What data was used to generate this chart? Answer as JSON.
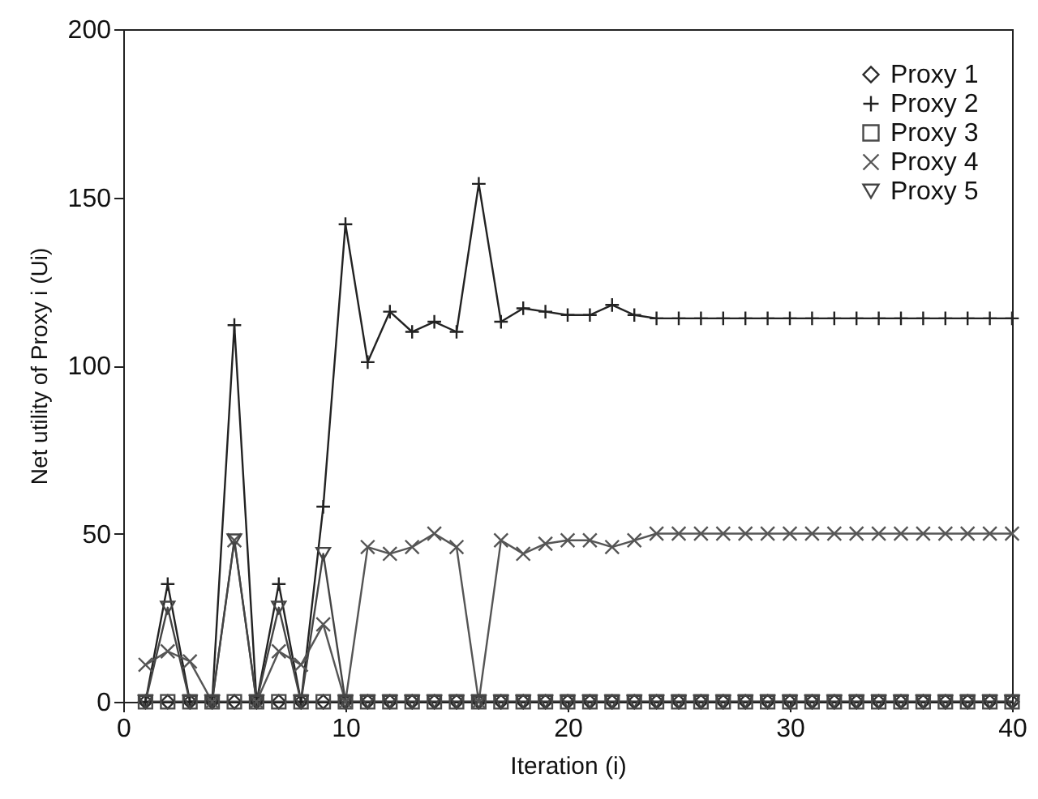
{
  "chart_data": {
    "type": "line",
    "xlabel": "Iteration (i)",
    "ylabel": "Net utility of Proxy i (Ui)",
    "x": [
      1,
      2,
      3,
      4,
      5,
      6,
      7,
      8,
      9,
      10,
      11,
      12,
      13,
      14,
      15,
      16,
      17,
      18,
      19,
      20,
      21,
      22,
      23,
      24,
      25,
      26,
      27,
      28,
      29,
      30,
      31,
      32,
      33,
      34,
      35,
      36,
      37,
      38,
      39,
      40
    ],
    "series": [
      {
        "name": "Proxy 1",
        "color": "#2a2a2a",
        "marker": "diamond",
        "values": [
          0,
          0,
          0,
          0,
          0,
          0,
          0,
          0,
          0,
          0,
          0,
          0,
          0,
          0,
          0,
          0,
          0,
          0,
          0,
          0,
          0,
          0,
          0,
          0,
          0,
          0,
          0,
          0,
          0,
          0,
          0,
          0,
          0,
          0,
          0,
          0,
          0,
          0,
          0,
          0
        ]
      },
      {
        "name": "Proxy 2",
        "color": "#222222",
        "marker": "plus",
        "values": [
          0,
          35,
          0,
          0,
          112,
          0,
          35,
          0,
          58,
          142,
          101,
          116,
          110,
          113,
          110,
          154,
          113,
          117,
          116,
          115,
          115,
          118,
          115,
          114,
          114,
          114,
          114,
          114,
          114,
          114,
          114,
          114,
          114,
          114,
          114,
          114,
          114,
          114,
          114,
          114
        ]
      },
      {
        "name": "Proxy 3",
        "color": "#4a4a4a",
        "marker": "square",
        "values": [
          0,
          0,
          0,
          0,
          0,
          0,
          0,
          0,
          0,
          0,
          0,
          0,
          0,
          0,
          0,
          0,
          0,
          0,
          0,
          0,
          0,
          0,
          0,
          0,
          0,
          0,
          0,
          0,
          0,
          0,
          0,
          0,
          0,
          0,
          0,
          0,
          0,
          0,
          0,
          0
        ]
      },
      {
        "name": "Proxy 4",
        "color": "#555555",
        "marker": "cross",
        "values": [
          11,
          15,
          12,
          0,
          48,
          0,
          15,
          11,
          23,
          0,
          46,
          44,
          46,
          50,
          46,
          0,
          48,
          44,
          47,
          48,
          48,
          46,
          48,
          50,
          50,
          50,
          50,
          50,
          50,
          50,
          50,
          50,
          50,
          50,
          50,
          50,
          50,
          50,
          50,
          50
        ]
      },
      {
        "name": "Proxy 5",
        "color": "#444444",
        "marker": "triangle",
        "values": [
          0,
          28,
          0,
          0,
          48,
          0,
          28,
          0,
          44,
          0,
          0,
          0,
          0,
          0,
          0,
          0,
          0,
          0,
          0,
          0,
          0,
          0,
          0,
          0,
          0,
          0,
          0,
          0,
          0,
          0,
          0,
          0,
          0,
          0,
          0,
          0,
          0,
          0,
          0,
          0
        ]
      }
    ],
    "xlim": [
      0,
      40
    ],
    "xticks": [
      0,
      10,
      20,
      30,
      40
    ],
    "ylim": [
      0,
      200
    ],
    "yticks": [
      0,
      50,
      100,
      150,
      200
    ],
    "grid": false,
    "legend": "top right"
  }
}
